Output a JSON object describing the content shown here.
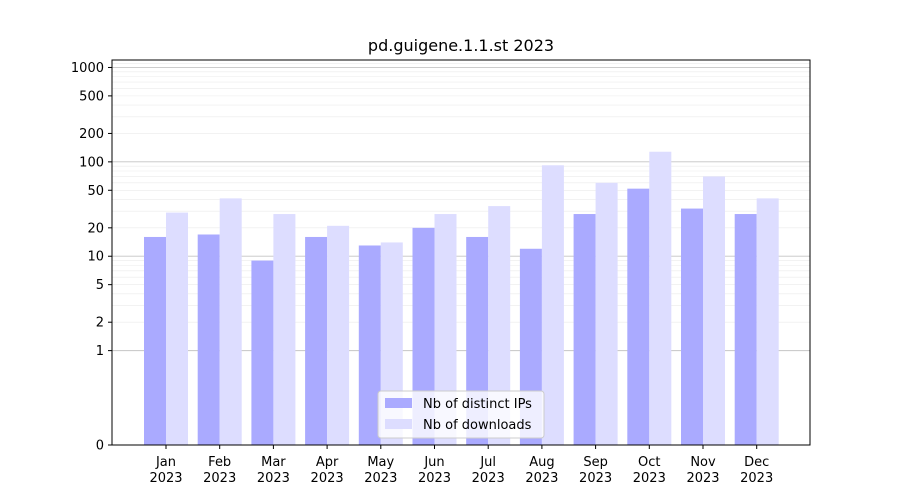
{
  "chart_data": {
    "type": "bar",
    "title": "pd.guigene.1.1.st 2023",
    "xlabel": "",
    "ylabel": "",
    "y_scale": "symlog",
    "ylim": [
      0,
      1200
    ],
    "y_ticks": [
      0,
      1,
      2,
      5,
      10,
      20,
      50,
      100,
      200,
      500,
      1000
    ],
    "y_tick_labels": [
      "0",
      "1",
      "2",
      "5",
      "10",
      "20",
      "50",
      "100",
      "200",
      "500",
      "1000"
    ],
    "grid": true,
    "legend_position": "bottom-center",
    "categories": [
      "Jan 2023",
      "Feb 2023",
      "Mar 2023",
      "Apr 2023",
      "May 2023",
      "Jun 2023",
      "Jul 2023",
      "Aug 2023",
      "Sep 2023",
      "Oct 2023",
      "Nov 2023",
      "Dec 2023"
    ],
    "category_lines": [
      [
        "Jan",
        "2023"
      ],
      [
        "Feb",
        "2023"
      ],
      [
        "Mar",
        "2023"
      ],
      [
        "Apr",
        "2023"
      ],
      [
        "May",
        "2023"
      ],
      [
        "Jun",
        "2023"
      ],
      [
        "Jul",
        "2023"
      ],
      [
        "Aug",
        "2023"
      ],
      [
        "Sep",
        "2023"
      ],
      [
        "Oct",
        "2023"
      ],
      [
        "Nov",
        "2023"
      ],
      [
        "Dec",
        "2023"
      ]
    ],
    "series": [
      {
        "name": "Nb of distinct IPs",
        "color": "#aaaaff",
        "values": [
          16,
          17,
          9,
          16,
          13,
          20,
          16,
          12,
          28,
          52,
          32,
          28
        ]
      },
      {
        "name": "Nb of downloads",
        "color": "#ddddff",
        "values": [
          29,
          41,
          28,
          21,
          14,
          28,
          34,
          92,
          60,
          128,
          70,
          41
        ]
      }
    ]
  }
}
